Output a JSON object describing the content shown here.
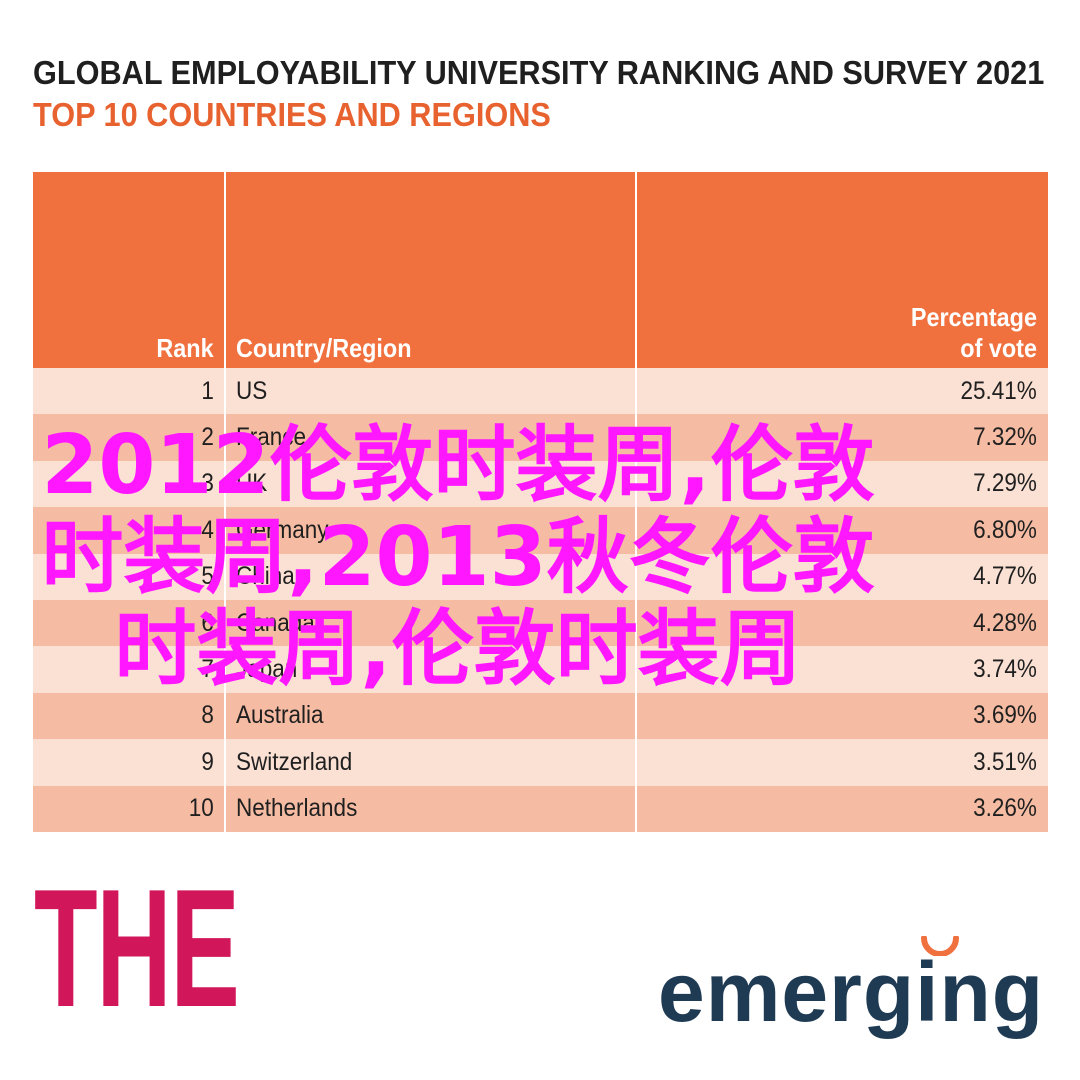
{
  "title": "GLOBAL EMPLOYABILITY UNIVERSITY RANKING AND SURVEY 2021",
  "subtitle": "TOP 10 COUNTRIES AND REGIONS",
  "table": {
    "headers": {
      "rank": "Rank",
      "country": "Country/Region",
      "percentage": "Percentage of vote"
    }
  },
  "chart_data": {
    "type": "table",
    "title": "GLOBAL EMPLOYABILITY UNIVERSITY RANKING AND SURVEY 2021",
    "subtitle": "TOP 10 COUNTRIES AND REGIONS",
    "columns": [
      "Rank",
      "Country/Region",
      "Percentage of vote"
    ],
    "rows": [
      {
        "rank": "1",
        "country": "US",
        "percentage": "25.41%"
      },
      {
        "rank": "2",
        "country": "France",
        "percentage": "7.32%"
      },
      {
        "rank": "3",
        "country": "UK",
        "percentage": "7.29%"
      },
      {
        "rank": "4",
        "country": "Germany",
        "percentage": "6.80%"
      },
      {
        "rank": "5",
        "country": "China",
        "percentage": "4.77%"
      },
      {
        "rank": "6",
        "country": "Canada",
        "percentage": "4.28%"
      },
      {
        "rank": "7",
        "country": "Japan",
        "percentage": "3.74%"
      },
      {
        "rank": "8",
        "country": "Australia",
        "percentage": "3.69%"
      },
      {
        "rank": "9",
        "country": "Switzerland",
        "percentage": "3.51%"
      },
      {
        "rank": "10",
        "country": "Netherlands",
        "percentage": "3.26%"
      }
    ]
  },
  "overlay_text": "2012伦敦时装周,伦敦时装周,2013秋冬伦敦时装周,伦敦时装周",
  "logos": {
    "the": "THE",
    "emerging": "emerging"
  },
  "colors": {
    "header": "#f0703e",
    "row_light": "#fbe1d4",
    "row_dark": "#f5bca3",
    "subtitle": "#e8622f",
    "overlay": "#ff18ff",
    "the_logo": "#d2165a",
    "emerging_logo": "#1f3b54"
  }
}
